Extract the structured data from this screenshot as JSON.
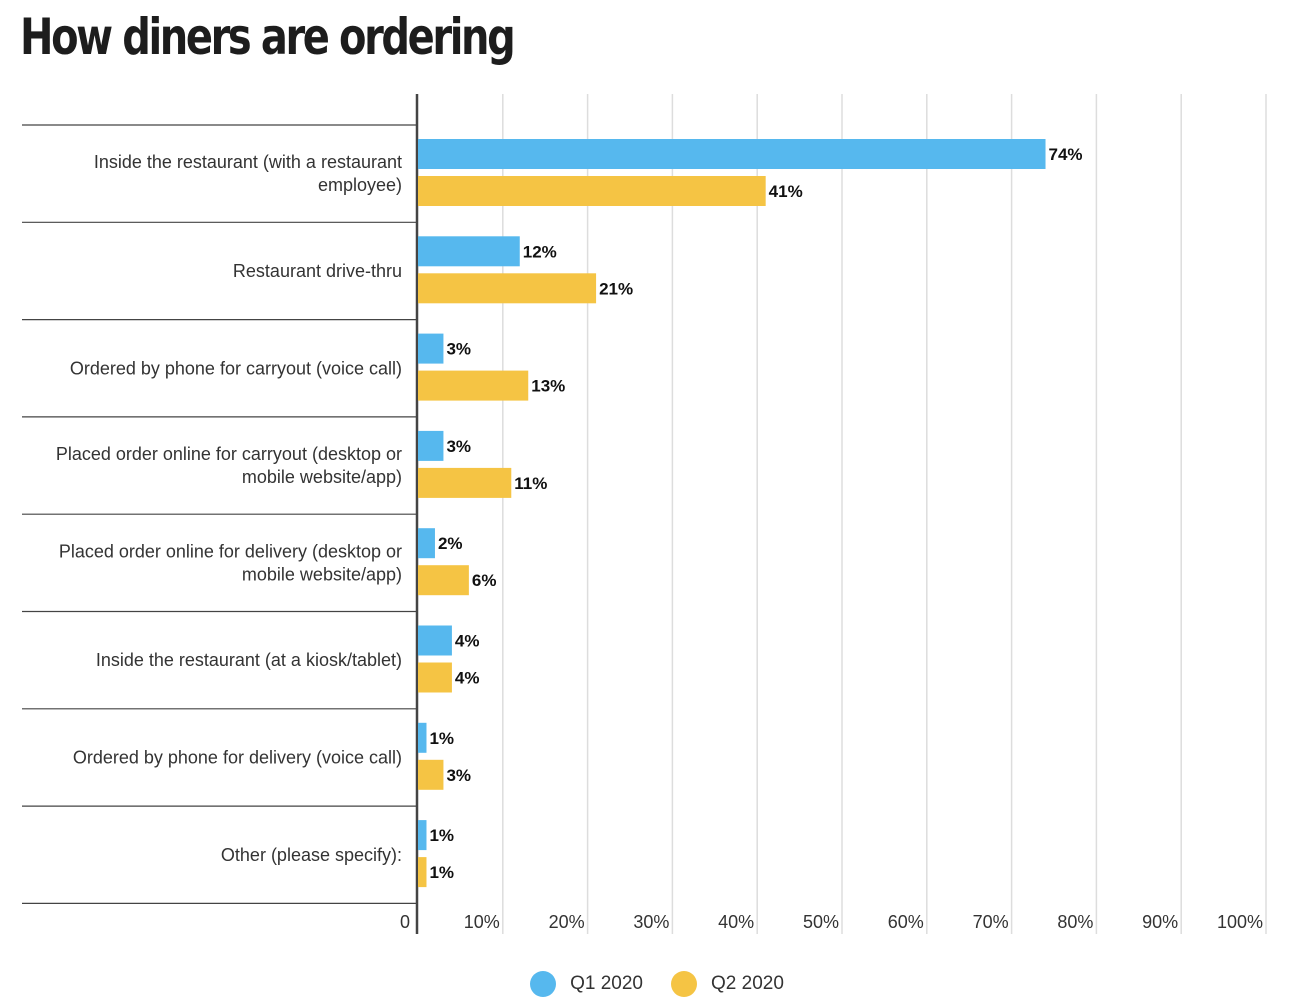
{
  "chart_data": {
    "type": "bar",
    "orientation": "horizontal",
    "title": "How diners are ordering",
    "categories": [
      "Inside the restaurant (with a restaurant employee)",
      "Restaurant drive-thru",
      "Ordered by phone for carryout (voice call)",
      "Placed order online for carryout (desktop or mobile website/app)",
      "Placed order online for delivery (desktop or mobile website/app)",
      "Inside the restaurant (at a kiosk/tablet)",
      "Ordered by phone for delivery (voice call)",
      "Other (please specify):"
    ],
    "series": [
      {
        "name": "Q1 2020",
        "color": "#56b8ee",
        "values": [
          74,
          12,
          3,
          3,
          2,
          4,
          1,
          1
        ]
      },
      {
        "name": "Q2 2020",
        "color": "#f5c444",
        "values": [
          41,
          21,
          13,
          11,
          6,
          4,
          3,
          1
        ]
      }
    ],
    "xlim": [
      0,
      100
    ],
    "x_ticks": [
      0,
      10,
      20,
      30,
      40,
      50,
      60,
      70,
      80,
      90,
      100
    ],
    "x_tick_labels": [
      "0",
      "10%",
      "20%",
      "30%",
      "40%",
      "50%",
      "60%",
      "70%",
      "80%",
      "90%",
      "100%"
    ],
    "value_suffix": "%",
    "grid": true,
    "legend_position": "bottom-center"
  }
}
